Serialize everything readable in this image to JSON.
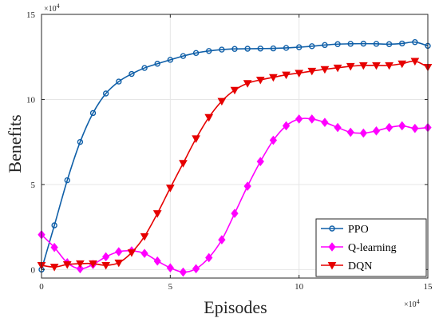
{
  "chart_data": {
    "type": "line",
    "title": "",
    "xlabel": "Episodes",
    "ylabel": "Benefits",
    "xlim": [
      0,
      150000
    ],
    "ylim": [
      -5000,
      150000
    ],
    "x_exponent_label": "×10",
    "x_exponent_power": "4",
    "y_exponent_label": "×10",
    "y_exponent_power": "4",
    "xticks": [
      0,
      50000,
      100000,
      150000
    ],
    "xtick_labels": [
      "0",
      "5",
      "10",
      "15"
    ],
    "yticks": [
      0,
      50000,
      100000,
      150000
    ],
    "ytick_labels": [
      "0",
      "5",
      "10",
      "15"
    ],
    "grid": true,
    "legend_position": "bottom-right",
    "series": [
      {
        "name": "PPO",
        "color": "#0f5fa8",
        "marker": "circle",
        "x": [
          0,
          5000,
          10000,
          15000,
          20000,
          25000,
          30000,
          35000,
          40000,
          45000,
          50000,
          55000,
          60000,
          65000,
          70000,
          75000,
          80000,
          85000,
          90000,
          95000,
          100000,
          105000,
          110000,
          115000,
          120000,
          125000,
          130000,
          135000,
          140000,
          145000,
          150000
        ],
        "y": [
          0,
          26000,
          52500,
          75000,
          92000,
          103500,
          110500,
          115000,
          118500,
          121000,
          123300,
          125500,
          127300,
          128500,
          129300,
          129700,
          129800,
          129900,
          130000,
          130300,
          130700,
          131300,
          132000,
          132500,
          132700,
          132800,
          132700,
          132500,
          132900,
          133700,
          131500
        ]
      },
      {
        "name": "Q-learning",
        "color": "#ff00ff",
        "marker": "diamond",
        "x": [
          0,
          5000,
          10000,
          15000,
          20000,
          25000,
          30000,
          35000,
          40000,
          45000,
          50000,
          55000,
          60000,
          65000,
          70000,
          75000,
          80000,
          85000,
          90000,
          95000,
          100000,
          105000,
          110000,
          115000,
          120000,
          125000,
          130000,
          135000,
          140000,
          145000,
          150000
        ],
        "y": [
          20500,
          13000,
          4000,
          500,
          3000,
          7500,
          10500,
          11000,
          9500,
          5000,
          1000,
          -1500,
          500,
          7000,
          17500,
          33000,
          49000,
          63500,
          76000,
          84500,
          88500,
          88500,
          86500,
          83500,
          80700,
          80200,
          81500,
          83500,
          84500,
          83000,
          83500
        ]
      },
      {
        "name": "DQN",
        "color": "#e60000",
        "marker": "triangle-down",
        "x": [
          0,
          5000,
          10000,
          15000,
          20000,
          25000,
          30000,
          35000,
          40000,
          45000,
          50000,
          55000,
          60000,
          65000,
          70000,
          75000,
          80000,
          85000,
          90000,
          95000,
          100000,
          105000,
          110000,
          115000,
          120000,
          125000,
          130000,
          135000,
          140000,
          145000,
          150000
        ],
        "y": [
          2500,
          1500,
          3000,
          3500,
          3500,
          2500,
          4000,
          10000,
          19500,
          33000,
          48000,
          62500,
          77000,
          89500,
          99000,
          105500,
          109500,
          111500,
          113000,
          114500,
          115500,
          116700,
          117700,
          118600,
          119500,
          120000,
          120000,
          120000,
          121000,
          122500,
          119000
        ]
      }
    ]
  }
}
